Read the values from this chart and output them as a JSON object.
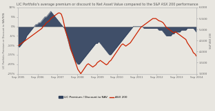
{
  "title": "LIC Portfolio's average premium or discount to Net Asset Value compared to the S&P ASX 200 performance",
  "ylabel_left": "LIC Portfolio Premium or Discount to NAV/NTA",
  "ylabel_right": "S&P ASX 200",
  "background_color": "#e8e6e0",
  "nav_color": "#2e3f5c",
  "asx_color": "#cc2200",
  "x_labels": [
    "Sep 2005",
    "Sep 2006",
    "Sep 2007",
    "Sep 2008",
    "Sep 2009",
    "Sep 2010",
    "Sep 2011",
    "Sep 2012",
    "Sep 2013",
    "Sep 2014"
  ],
  "ylim_left": [
    -0.25,
    0.1
  ],
  "ylim_right": [
    3000,
    6000
  ],
  "yticks_left": [
    0.1,
    0.05,
    0.0,
    -0.05,
    -0.1,
    -0.15,
    -0.2,
    -0.25
  ],
  "ytick_labels_left": [
    "10%",
    "5%",
    "0%",
    "-5%",
    "-10%",
    "-15%",
    "-20%",
    "-25%"
  ],
  "yticks_right": [
    6000,
    5500,
    5000,
    4500,
    4000,
    3500,
    3000
  ],
  "legend_labels": [
    "LIC Premium / Discount to NAV",
    "ASX 200"
  ],
  "nav_y": [
    -0.1,
    -0.11,
    -0.1,
    -0.09,
    -0.08,
    -0.07,
    -0.05,
    -0.04,
    -0.03,
    -0.02,
    -0.01,
    0.0,
    0.01,
    0.01,
    0.02,
    0.02,
    0.03,
    0.04,
    0.05,
    0.05,
    0.06,
    0.07,
    0.08,
    0.07,
    0.06,
    0.05,
    0.04,
    0.03,
    0.02,
    0.01,
    0.0,
    -0.01,
    -0.03,
    -0.06,
    -0.09,
    -0.12,
    -0.14,
    -0.16,
    -0.18,
    -0.19,
    -0.2,
    -0.2,
    -0.19,
    -0.18,
    -0.17,
    -0.16,
    -0.15,
    -0.14,
    -0.13,
    -0.12,
    -0.11,
    -0.1,
    -0.09,
    -0.09,
    -0.08,
    -0.09,
    -0.1,
    -0.11,
    -0.12,
    -0.13,
    -0.14,
    -0.15,
    -0.15,
    -0.14,
    -0.13,
    -0.12,
    -0.11,
    -0.1,
    -0.09,
    -0.08,
    -0.07,
    -0.06,
    -0.05,
    -0.04,
    -0.03,
    -0.02,
    -0.01,
    0.0,
    0.0,
    0.0,
    0.0,
    0.0,
    0.0,
    0.0,
    -0.01,
    -0.01,
    -0.01,
    -0.01,
    -0.01,
    -0.01,
    -0.01,
    -0.01,
    -0.01,
    -0.01,
    -0.02,
    -0.02,
    -0.02,
    -0.03,
    -0.04,
    -0.05,
    -0.05,
    -0.05,
    -0.05,
    -0.04,
    -0.04,
    -0.03,
    -0.03,
    -0.03,
    -0.03,
    -0.02,
    -0.02,
    -0.02,
    -0.02,
    -0.01,
    -0.01,
    -0.01,
    -0.01,
    -0.01,
    -0.02,
    -0.03
  ],
  "asx_y": [
    4250,
    4300,
    4350,
    4400,
    4450,
    4500,
    4550,
    4600,
    4650,
    4700,
    4750,
    4800,
    4850,
    4900,
    4950,
    5000,
    5050,
    5150,
    5200,
    5300,
    5350,
    5400,
    5500,
    5550,
    5600,
    5650,
    5700,
    5750,
    5750,
    5700,
    5500,
    5200,
    4900,
    4700,
    4500,
    4200,
    4000,
    3800,
    3600,
    3400,
    3200,
    3100,
    3000,
    3100,
    3200,
    3300,
    3400,
    3450,
    3400,
    3350,
    3300,
    3350,
    3400,
    3500,
    3550,
    3600,
    3550,
    3500,
    3450,
    3400,
    3450,
    3550,
    3600,
    3700,
    3800,
    3900,
    4000,
    4100,
    4200,
    4300,
    4350,
    4300,
    4250,
    4300,
    4350,
    4400,
    4500,
    4600,
    4700,
    4800,
    4900,
    5000,
    5100,
    5150,
    5200,
    5250,
    5300,
    5350,
    5400,
    5450,
    5500,
    5500,
    5500,
    5450,
    5400,
    5380,
    5350,
    5300,
    5200,
    5100,
    5050,
    5000,
    4950,
    4900,
    4850,
    4900,
    4850,
    4800,
    4750,
    4700,
    4650,
    4600,
    4550,
    4400,
    4300,
    4200,
    4100,
    3950,
    3900,
    3800
  ]
}
